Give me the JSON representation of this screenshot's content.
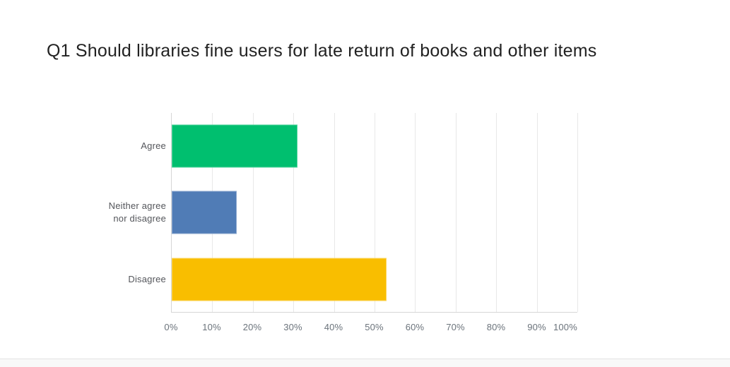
{
  "chart": {
    "title": "Q1 Should libraries fine users for late return of books and other items"
  },
  "chart_data": {
    "type": "bar",
    "orientation": "horizontal",
    "title": "Q1 Should libraries fine users for late return of books and other items",
    "categories": [
      "Agree",
      "Neither agree nor disagree",
      "Disagree"
    ],
    "values": [
      31,
      16,
      53
    ],
    "unit": "%",
    "series_colors": [
      "#00BF6F",
      "#507CB6",
      "#F9BE00"
    ],
    "xlabel": "",
    "ylabel": "",
    "xlim": [
      0,
      100
    ],
    "x_ticks": [
      "0%",
      "10%",
      "20%",
      "30%",
      "40%",
      "50%",
      "60%",
      "70%",
      "80%",
      "90%",
      "100%"
    ],
    "grid": "vertical-only",
    "legend": "none",
    "colors": {
      "title_text": "#222222",
      "category_text": "#54565b",
      "tick_text": "#6b737b",
      "gridline": "#e8e8e8",
      "axis_line": "#d6d6d6",
      "footer_band": "#f8f8f8"
    }
  }
}
